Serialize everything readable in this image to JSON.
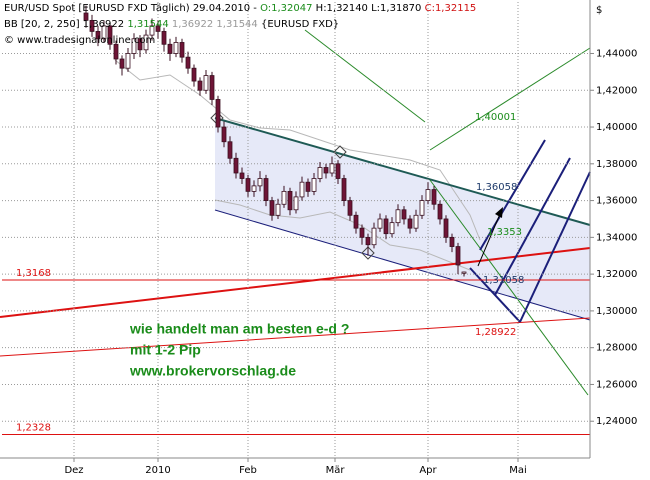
{
  "chart_data": {
    "type": "candlestick",
    "header": {
      "symbol": "EUR/USD Spot [EURUSD FXD  Täglich) 29.04.2010 -",
      "open": "O:1,32047",
      "high": "H:1,32140",
      "low": "L:1,31870",
      "close": "C:1,32115",
      "indicator": "BB [20, 2, 250]",
      "bb_values": [
        "1,36922",
        "1,31544",
        "1,36922",
        "1,31544"
      ],
      "bb_source": "{EURUSD FXD}",
      "copyright": "© www.tradesignalonline.com"
    },
    "currency": "$",
    "up_color": "#ffffff",
    "down_color": "#6e1436",
    "edge_color": "#3a1020",
    "grid": true,
    "xlim": [
      -14,
      84
    ],
    "xticks": [
      {
        "value": -2,
        "label": "Dez"
      },
      {
        "value": 12,
        "label": "2010"
      },
      {
        "value": 27,
        "label": "Feb"
      },
      {
        "value": 41.5,
        "label": "Mär"
      },
      {
        "value": 57,
        "label": "Apr"
      },
      {
        "value": 72,
        "label": "Mai"
      }
    ],
    "ylim": [
      1.22,
      1.468
    ],
    "yticks": [
      {
        "value": 1.24,
        "label": "1,24000"
      },
      {
        "value": 1.26,
        "label": "1,26000"
      },
      {
        "value": 1.28,
        "label": "1,28000"
      },
      {
        "value": 1.3,
        "label": "1,30000"
      },
      {
        "value": 1.32,
        "label": "1,32000"
      },
      {
        "value": 1.34,
        "label": "1,34000"
      },
      {
        "value": 1.36,
        "label": "1,36000"
      },
      {
        "value": 1.38,
        "label": "1,38000"
      },
      {
        "value": 1.4,
        "label": "1,40000"
      },
      {
        "value": 1.42,
        "label": "1,42000"
      },
      {
        "value": 1.44,
        "label": "1,44000"
      }
    ],
    "candles": [
      [
        1.462,
        1.466,
        1.454,
        1.458
      ],
      [
        1.458,
        1.461,
        1.449,
        1.452
      ],
      [
        1.452,
        1.455,
        1.444,
        1.448
      ],
      [
        1.448,
        1.458,
        1.446,
        1.455
      ],
      [
        1.455,
        1.457,
        1.442,
        1.445
      ],
      [
        1.445,
        1.447,
        1.434,
        1.437
      ],
      [
        1.437,
        1.439,
        1.428,
        1.432
      ],
      [
        1.432,
        1.443,
        1.43,
        1.44
      ],
      [
        1.44,
        1.451,
        1.437,
        1.448
      ],
      [
        1.448,
        1.45,
        1.438,
        1.442
      ],
      [
        1.442,
        1.453,
        1.44,
        1.45
      ],
      [
        1.45,
        1.459,
        1.447,
        1.455
      ],
      [
        1.455,
        1.458,
        1.448,
        1.452
      ],
      [
        1.452,
        1.454,
        1.441,
        1.445
      ],
      [
        1.445,
        1.448,
        1.436,
        1.44
      ],
      [
        1.44,
        1.449,
        1.438,
        1.446
      ],
      [
        1.446,
        1.448,
        1.435,
        1.438
      ],
      [
        1.438,
        1.441,
        1.429,
        1.432
      ],
      [
        1.432,
        1.434,
        1.422,
        1.425
      ],
      [
        1.425,
        1.427,
        1.417,
        1.42
      ],
      [
        1.42,
        1.431,
        1.418,
        1.428
      ],
      [
        1.428,
        1.43,
        1.412,
        1.415
      ],
      [
        1.415,
        1.417,
        1.397,
        1.4
      ],
      [
        1.4,
        1.403,
        1.389,
        1.392
      ],
      [
        1.392,
        1.395,
        1.38,
        1.383
      ],
      [
        1.383,
        1.386,
        1.372,
        1.375
      ],
      [
        1.375,
        1.378,
        1.369,
        1.372
      ],
      [
        1.372,
        1.374,
        1.362,
        1.365
      ],
      [
        1.365,
        1.371,
        1.362,
        1.368
      ],
      [
        1.368,
        1.376,
        1.365,
        1.372
      ],
      [
        1.372,
        1.374,
        1.357,
        1.36
      ],
      [
        1.36,
        1.362,
        1.349,
        1.352
      ],
      [
        1.352,
        1.361,
        1.35,
        1.358
      ],
      [
        1.358,
        1.368,
        1.356,
        1.365
      ],
      [
        1.365,
        1.367,
        1.352,
        1.355
      ],
      [
        1.355,
        1.365,
        1.353,
        1.362
      ],
      [
        1.362,
        1.373,
        1.36,
        1.37
      ],
      [
        1.37,
        1.372,
        1.362,
        1.365
      ],
      [
        1.365,
        1.375,
        1.363,
        1.372
      ],
      [
        1.372,
        1.381,
        1.37,
        1.378
      ],
      [
        1.378,
        1.38,
        1.372,
        1.375
      ],
      [
        1.375,
        1.384,
        1.373,
        1.38
      ],
      [
        1.38,
        1.382,
        1.369,
        1.372
      ],
      [
        1.372,
        1.374,
        1.357,
        1.36
      ],
      [
        1.36,
        1.362,
        1.349,
        1.352
      ],
      [
        1.352,
        1.354,
        1.342,
        1.345
      ],
      [
        1.345,
        1.347,
        1.336,
        1.34
      ],
      [
        1.34,
        1.342,
        1.33,
        1.336
      ],
      [
        1.336,
        1.348,
        1.334,
        1.345
      ],
      [
        1.345,
        1.353,
        1.343,
        1.35
      ],
      [
        1.35,
        1.352,
        1.339,
        1.342
      ],
      [
        1.342,
        1.351,
        1.34,
        1.348
      ],
      [
        1.348,
        1.358,
        1.346,
        1.355
      ],
      [
        1.355,
        1.357,
        1.347,
        1.35
      ],
      [
        1.35,
        1.352,
        1.342,
        1.345
      ],
      [
        1.345,
        1.355,
        1.343,
        1.352
      ],
      [
        1.352,
        1.363,
        1.35,
        1.36
      ],
      [
        1.36,
        1.37,
        1.358,
        1.366
      ],
      [
        1.366,
        1.368,
        1.355,
        1.358
      ],
      [
        1.358,
        1.36,
        1.347,
        1.35
      ],
      [
        1.35,
        1.352,
        1.337,
        1.34
      ],
      [
        1.34,
        1.342,
        1.332,
        1.335
      ],
      [
        1.335,
        1.337,
        1.32,
        1.325
      ],
      [
        1.32047,
        1.3214,
        1.3187,
        1.32115
      ]
    ],
    "hlines": [
      {
        "value": 1.3168,
        "label": "1,3168"
      },
      {
        "value": 1.2328,
        "label": "1,2328"
      }
    ],
    "level_labels": [
      "1,40001",
      "1,36058",
      "1,3353",
      "1,31058",
      "1,28922"
    ],
    "notes": [
      "wie handelt man am besten e-d ?",
      "mit 1-2 Pip",
      "www.brokervorschlag.de"
    ]
  }
}
